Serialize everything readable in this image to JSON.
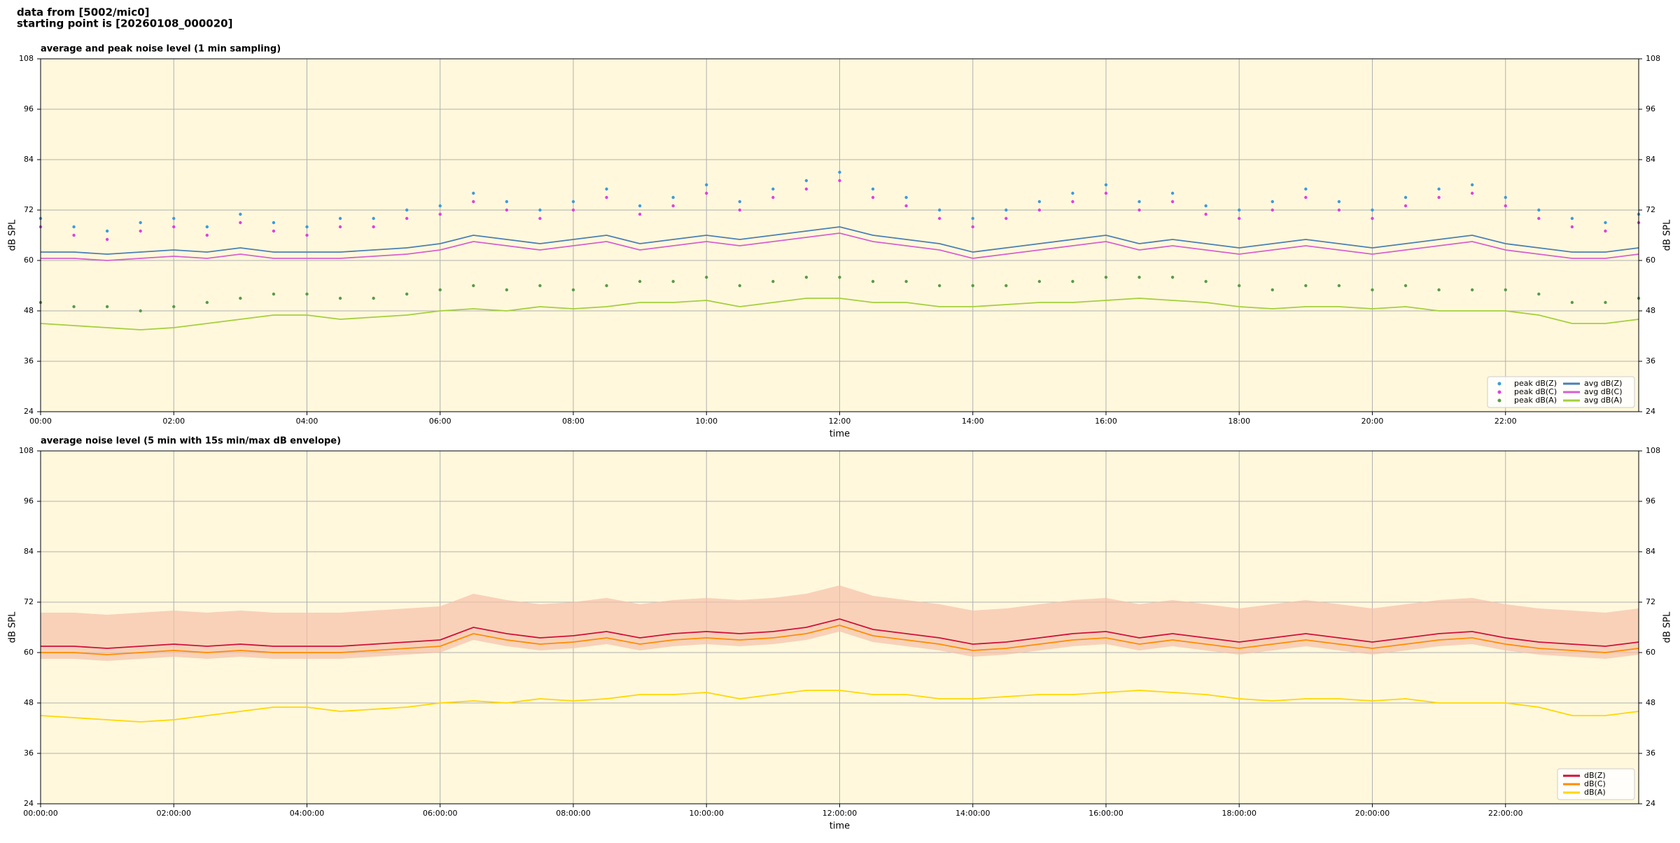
{
  "header": {
    "line1": "data from [5002/mic0]",
    "line2": "starting point is [20260108_000020]"
  },
  "chart_data": [
    {
      "type": "line",
      "title": "average and peak noise level (1 min sampling)",
      "xlabel": "time",
      "ylabel": "dB SPL",
      "ylabel_right": "dB SPL",
      "xlim": [
        0,
        24
      ],
      "ylim": [
        24,
        108
      ],
      "yticks": [
        24,
        36,
        48,
        60,
        72,
        84,
        96,
        108
      ],
      "xticks": [
        {
          "value": 0,
          "label": "00:00"
        },
        {
          "value": 2,
          "label": "02:00"
        },
        {
          "value": 4,
          "label": "04:00"
        },
        {
          "value": 6,
          "label": "06:00"
        },
        {
          "value": 8,
          "label": "08:00"
        },
        {
          "value": 10,
          "label": "10:00"
        },
        {
          "value": 12,
          "label": "12:00"
        },
        {
          "value": 14,
          "label": "14:00"
        },
        {
          "value": 16,
          "label": "16:00"
        },
        {
          "value": 18,
          "label": "18:00"
        },
        {
          "value": 20,
          "label": "20:00"
        },
        {
          "value": 22,
          "label": "22:00"
        }
      ],
      "grid": true,
      "legend": "lower right",
      "background": "#fff8dc",
      "x": [
        0,
        0.5,
        1,
        1.5,
        2,
        2.5,
        3,
        3.5,
        4,
        4.5,
        5,
        5.5,
        6,
        6.5,
        7,
        7.5,
        8,
        8.5,
        9,
        9.5,
        10,
        10.5,
        11,
        11.5,
        12,
        12.5,
        13,
        13.5,
        14,
        14.5,
        15,
        15.5,
        16,
        16.5,
        17,
        17.5,
        18,
        18.5,
        19,
        19.5,
        20,
        20.5,
        21,
        21.5,
        22,
        22.5,
        23,
        23.5,
        24
      ],
      "series": [
        {
          "name": "peak dB(Z)",
          "type": "scatter",
          "color": "#3b9be0",
          "values": [
            70,
            68,
            67,
            69,
            70,
            68,
            71,
            69,
            68,
            70,
            70,
            72,
            73,
            76,
            74,
            72,
            74,
            77,
            73,
            75,
            78,
            74,
            77,
            79,
            81,
            77,
            75,
            72,
            70,
            72,
            74,
            76,
            78,
            74,
            76,
            73,
            72,
            74,
            77,
            74,
            72,
            75,
            77,
            78,
            75,
            72,
            70,
            69,
            71
          ]
        },
        {
          "name": "peak dB(C)",
          "type": "scatter",
          "color": "#e040e0",
          "values": [
            68,
            66,
            65,
            67,
            68,
            66,
            69,
            67,
            66,
            68,
            68,
            70,
            71,
            74,
            72,
            70,
            72,
            75,
            71,
            73,
            76,
            72,
            75,
            77,
            79,
            75,
            73,
            70,
            68,
            70,
            72,
            74,
            76,
            72,
            74,
            71,
            70,
            72,
            75,
            72,
            70,
            73,
            75,
            76,
            73,
            70,
            68,
            67,
            69
          ]
        },
        {
          "name": "peak dB(A)",
          "type": "scatter",
          "color": "#5a9a4a",
          "values": [
            50,
            49,
            49,
            48,
            49,
            50,
            51,
            52,
            52,
            51,
            51,
            52,
            53,
            54,
            53,
            54,
            53,
            54,
            55,
            55,
            56,
            54,
            55,
            56,
            56,
            55,
            55,
            54,
            54,
            54,
            55,
            55,
            56,
            56,
            56,
            55,
            54,
            53,
            54,
            54,
            53,
            54,
            53,
            53,
            53,
            52,
            50,
            50,
            51
          ]
        },
        {
          "name": "avg dB(Z)",
          "type": "line",
          "color": "#4a7fb5",
          "values": [
            62,
            62,
            61.5,
            62,
            62.5,
            62,
            63,
            62,
            62,
            62,
            62.5,
            63,
            64,
            66,
            65,
            64,
            65,
            66,
            64,
            65,
            66,
            65,
            66,
            67,
            68,
            66,
            65,
            64,
            62,
            63,
            64,
            65,
            66,
            64,
            65,
            64,
            63,
            64,
            65,
            64,
            63,
            64,
            65,
            66,
            64,
            63,
            62,
            62,
            63
          ]
        },
        {
          "name": "avg dB(C)",
          "type": "line",
          "color": "#d660d0",
          "values": [
            60.5,
            60.5,
            60,
            60.5,
            61,
            60.5,
            61.5,
            60.5,
            60.5,
            60.5,
            61,
            61.5,
            62.5,
            64.5,
            63.5,
            62.5,
            63.5,
            64.5,
            62.5,
            63.5,
            64.5,
            63.5,
            64.5,
            65.5,
            66.5,
            64.5,
            63.5,
            62.5,
            60.5,
            61.5,
            62.5,
            63.5,
            64.5,
            62.5,
            63.5,
            62.5,
            61.5,
            62.5,
            63.5,
            62.5,
            61.5,
            62.5,
            63.5,
            64.5,
            62.5,
            61.5,
            60.5,
            60.5,
            61.5
          ]
        },
        {
          "name": "avg dB(A)",
          "type": "line",
          "color": "#a5cf3c",
          "values": [
            45,
            44.5,
            44,
            43.5,
            44,
            45,
            46,
            47,
            47,
            46,
            46.5,
            47,
            48,
            48.5,
            48,
            49,
            48.5,
            49,
            50,
            50,
            50.5,
            49,
            50,
            51,
            51,
            50,
            50,
            49,
            49,
            49.5,
            50,
            50,
            50.5,
            51,
            50.5,
            50,
            49,
            48.5,
            49,
            49,
            48.5,
            49,
            48,
            48,
            48,
            47,
            45,
            45,
            46
          ]
        }
      ]
    },
    {
      "type": "line",
      "title": "average noise level (5 min with 15s min/max dB envelope)",
      "xlabel": "time",
      "ylabel": "dB SPL",
      "ylabel_right": "dB SPL",
      "xlim": [
        0,
        24
      ],
      "ylim": [
        24,
        108
      ],
      "yticks": [
        24,
        36,
        48,
        60,
        72,
        84,
        96,
        108
      ],
      "xticks": [
        {
          "value": 0,
          "label": "00:00:00"
        },
        {
          "value": 2,
          "label": "02:00:00"
        },
        {
          "value": 4,
          "label": "04:00:00"
        },
        {
          "value": 6,
          "label": "06:00:00"
        },
        {
          "value": 8,
          "label": "08:00:00"
        },
        {
          "value": 10,
          "label": "10:00:00"
        },
        {
          "value": 12,
          "label": "12:00:00"
        },
        {
          "value": 14,
          "label": "14:00:00"
        },
        {
          "value": 16,
          "label": "16:00:00"
        },
        {
          "value": 18,
          "label": "18:00:00"
        },
        {
          "value": 20,
          "label": "20:00:00"
        },
        {
          "value": 22,
          "label": "22:00:00"
        }
      ],
      "grid": true,
      "legend": "lower right",
      "background": "#fff8dc",
      "envelope_color": "#f5c0a8",
      "x": [
        0,
        0.5,
        1,
        1.5,
        2,
        2.5,
        3,
        3.5,
        4,
        4.5,
        5,
        5.5,
        6,
        6.5,
        7,
        7.5,
        8,
        8.5,
        9,
        9.5,
        10,
        10.5,
        11,
        11.5,
        12,
        12.5,
        13,
        13.5,
        14,
        14.5,
        15,
        15.5,
        16,
        16.5,
        17,
        17.5,
        18,
        18.5,
        19,
        19.5,
        20,
        20.5,
        21,
        21.5,
        22,
        22.5,
        23,
        23.5,
        24
      ],
      "envelope_high": [
        69.5,
        69.5,
        69,
        69.5,
        70,
        69.5,
        70,
        69.5,
        69.5,
        69.5,
        70,
        70.5,
        71,
        74,
        72.5,
        71.5,
        72,
        73,
        71.5,
        72.5,
        73,
        72.5,
        73,
        74,
        76,
        73.5,
        72.5,
        71.5,
        70,
        70.5,
        71.5,
        72.5,
        73,
        71.5,
        72.5,
        71.5,
        70.5,
        71.5,
        72.5,
        71.5,
        70.5,
        71.5,
        72.5,
        73,
        71.5,
        70.5,
        70,
        69.5,
        70.5
      ],
      "envelope_low": [
        58.5,
        58.5,
        58,
        58.5,
        59,
        58.5,
        59,
        58.5,
        58.5,
        58.5,
        59,
        59.5,
        60,
        63,
        61.5,
        60.5,
        61,
        62,
        60.5,
        61.5,
        62,
        61.5,
        62,
        63,
        65,
        62.5,
        61.5,
        60.5,
        59,
        59.5,
        60.5,
        61.5,
        62,
        60.5,
        61.5,
        60.5,
        59.5,
        60.5,
        61.5,
        60.5,
        59.5,
        60.5,
        61.5,
        62,
        60.5,
        59.5,
        59,
        58.5,
        59.5
      ],
      "series": [
        {
          "name": "dB(Z)",
          "type": "line",
          "color": "#d0103a",
          "values": [
            61.5,
            61.5,
            61,
            61.5,
            62,
            61.5,
            62,
            61.5,
            61.5,
            61.5,
            62,
            62.5,
            63,
            66,
            64.5,
            63.5,
            64,
            65,
            63.5,
            64.5,
            65,
            64.5,
            65,
            66,
            68,
            65.5,
            64.5,
            63.5,
            62,
            62.5,
            63.5,
            64.5,
            65,
            63.5,
            64.5,
            63.5,
            62.5,
            63.5,
            64.5,
            63.5,
            62.5,
            63.5,
            64.5,
            65,
            63.5,
            62.5,
            62,
            61.5,
            62.5
          ]
        },
        {
          "name": "dB(C)",
          "type": "line",
          "color": "#ff8c00",
          "values": [
            60,
            60,
            59.5,
            60,
            60.5,
            60,
            60.5,
            60,
            60,
            60,
            60.5,
            61,
            61.5,
            64.5,
            63,
            62,
            62.5,
            63.5,
            62,
            63,
            63.5,
            63,
            63.5,
            64.5,
            66.5,
            64,
            63,
            62,
            60.5,
            61,
            62,
            63,
            63.5,
            62,
            63,
            62,
            61,
            62,
            63,
            62,
            61,
            62,
            63,
            63.5,
            62,
            61,
            60.5,
            60,
            61
          ]
        },
        {
          "name": "dB(A)",
          "type": "line",
          "color": "#ffd700",
          "values": [
            45,
            44.5,
            44,
            43.5,
            44,
            45,
            46,
            47,
            47,
            46,
            46.5,
            47,
            48,
            48.5,
            48,
            49,
            48.5,
            49,
            50,
            50,
            50.5,
            49,
            50,
            51,
            51,
            50,
            50,
            49,
            49,
            49.5,
            50,
            50,
            50.5,
            51,
            50.5,
            50,
            49,
            48.5,
            49,
            49,
            48.5,
            49,
            48,
            48,
            48,
            47,
            45,
            45,
            46
          ]
        }
      ]
    }
  ]
}
